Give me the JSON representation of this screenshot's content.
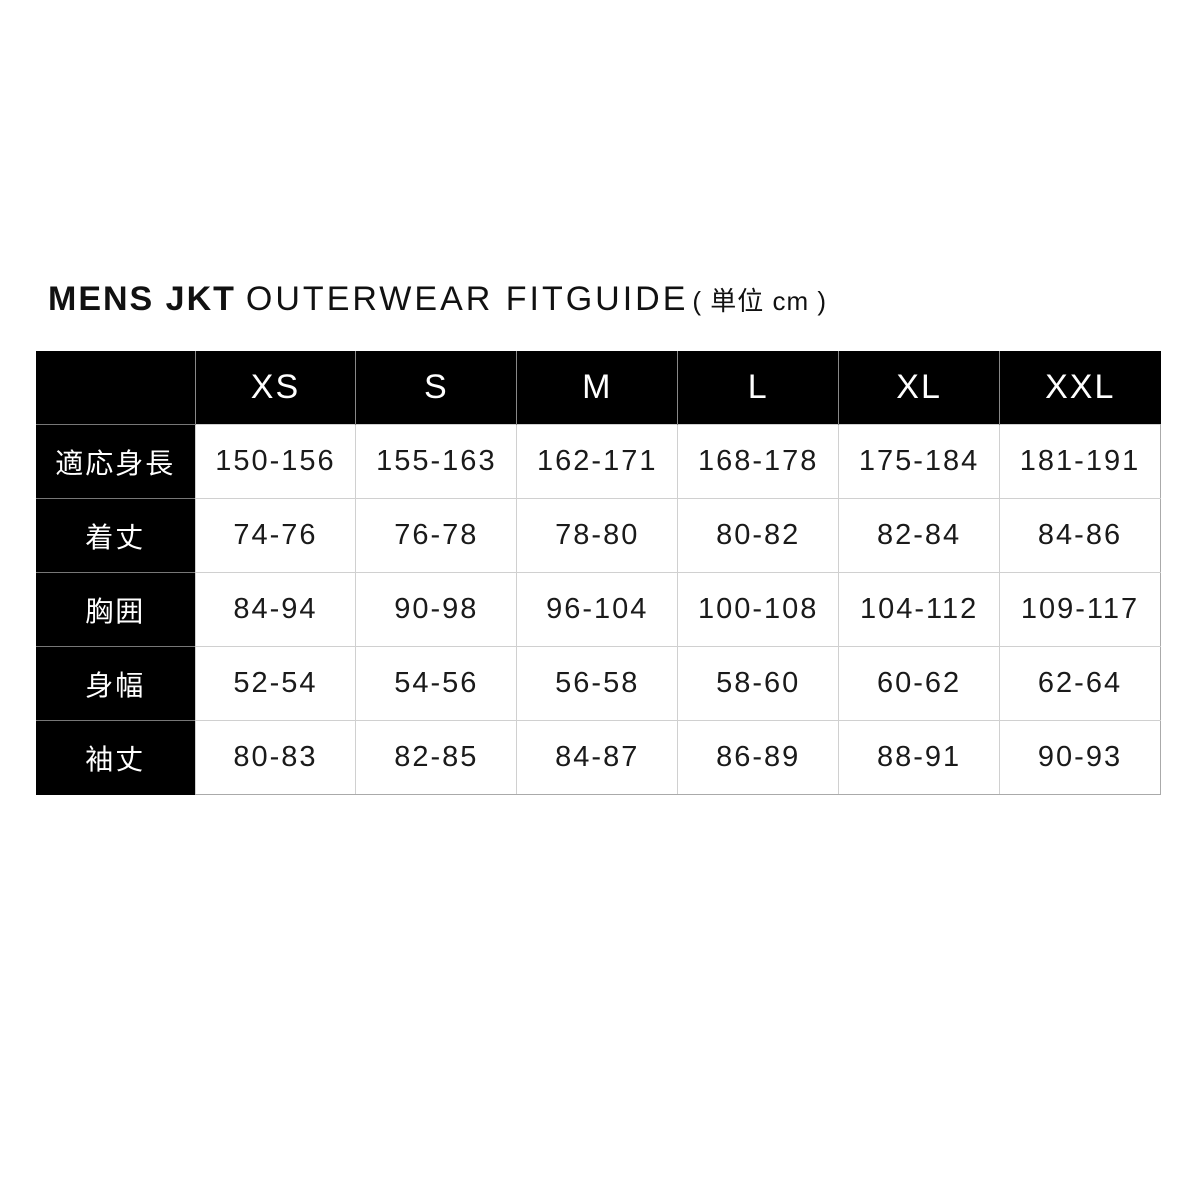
{
  "title": {
    "bold": "MENS JKT",
    "light": "OUTERWEAR FITGUIDE",
    "unit": "( 単位 cm )"
  },
  "table": {
    "columns": [
      "",
      "XS",
      "S",
      "M",
      "L",
      "XL",
      "XXL"
    ],
    "rows": [
      {
        "label": "適応身長",
        "values": [
          "150-156",
          "155-163",
          "162-171",
          "168-178",
          "175-184",
          "181-191"
        ]
      },
      {
        "label": "着丈",
        "values": [
          "74-76",
          "76-78",
          "78-80",
          "80-82",
          "82-84",
          "84-86"
        ]
      },
      {
        "label": "胸囲",
        "values": [
          "84-94",
          "90-98",
          "96-104",
          "100-108",
          "104-112",
          "109-117"
        ]
      },
      {
        "label": "身幅",
        "values": [
          "52-54",
          "54-56",
          "56-58",
          "58-60",
          "60-62",
          "62-64"
        ]
      },
      {
        "label": "袖丈",
        "values": [
          "80-83",
          "82-85",
          "84-87",
          "86-89",
          "88-91",
          "90-93"
        ]
      }
    ]
  }
}
